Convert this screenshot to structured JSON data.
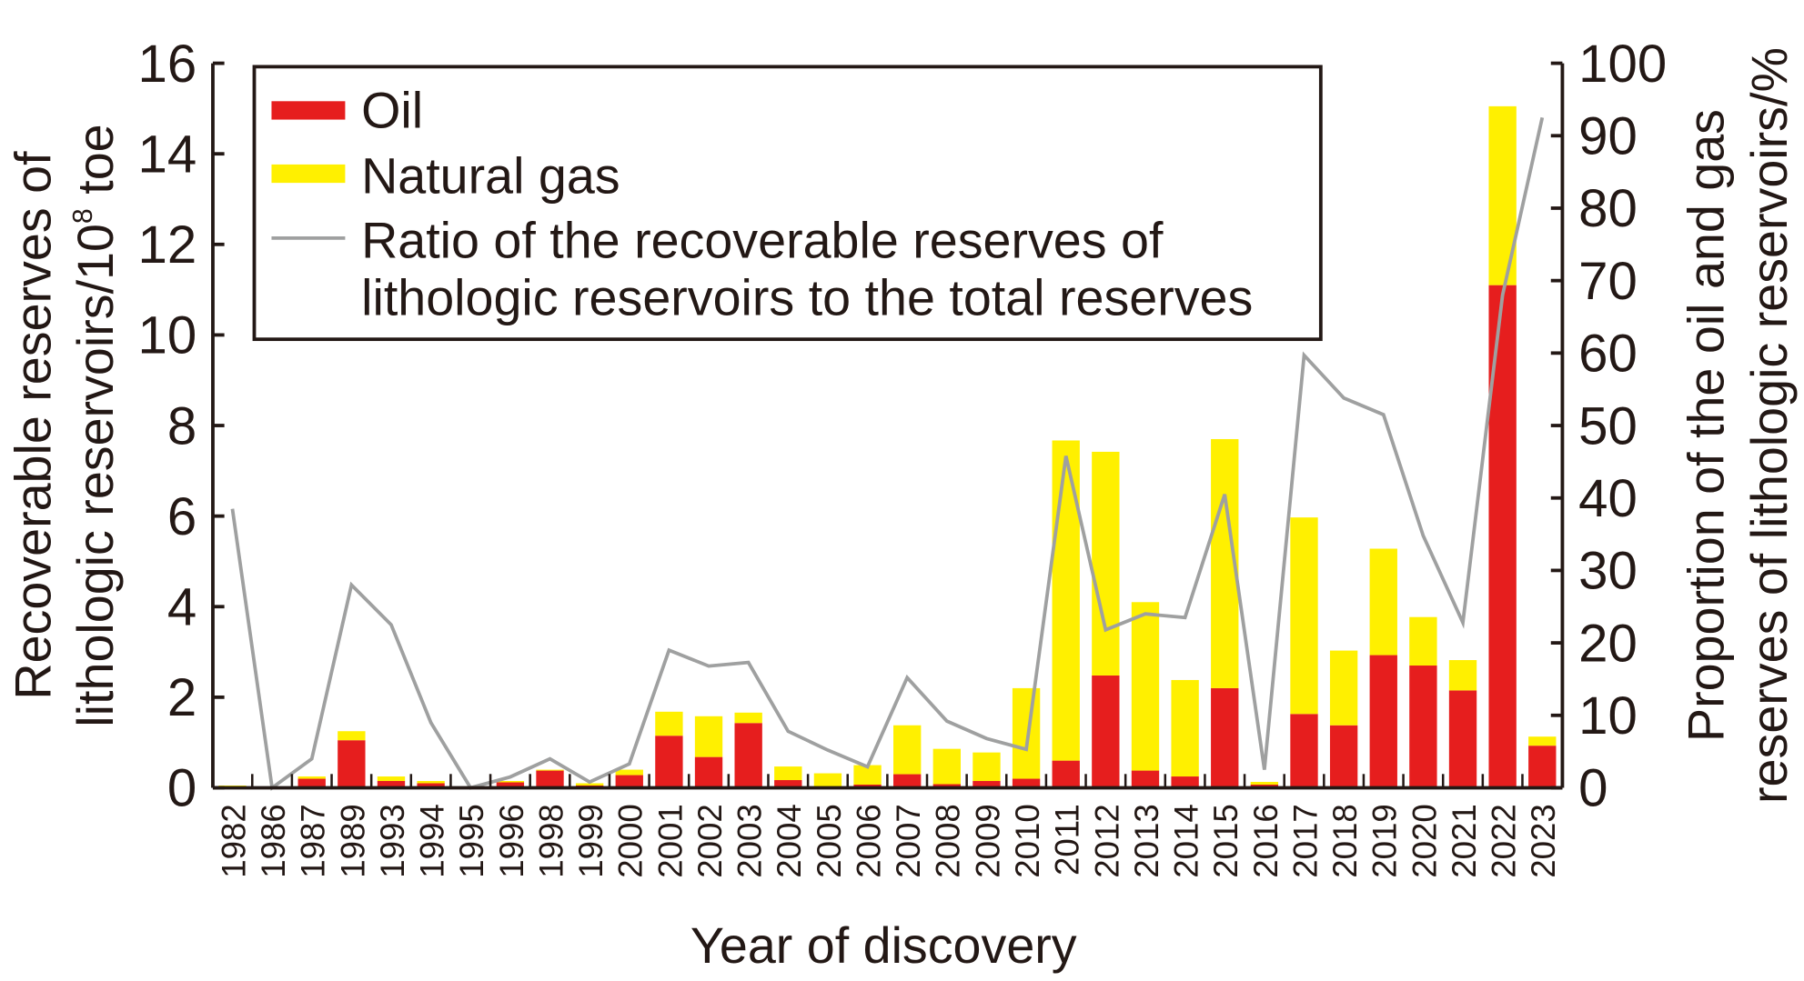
{
  "chart_data": {
    "type": "bar",
    "subtype": "stacked bar with line on secondary axis",
    "xlabel": "Year of discovery",
    "ylabel_line1": "Recoverable reserves of",
    "ylabel_line2": "lithologic reservoirs/10",
    "ylabel_sup": "8",
    "ylabel_unit": " toe",
    "y2label_line1": "Proportion of the oil and gas",
    "y2label_line2": "reserves of lithologic reservoirs/%",
    "ylim": [
      0,
      16
    ],
    "yticks": [
      "0",
      "2",
      "4",
      "6",
      "8",
      "10",
      "12",
      "14",
      "16"
    ],
    "y2lim": [
      0,
      100
    ],
    "y2ticks": [
      "0",
      "10",
      "20",
      "30",
      "40",
      "50",
      "60",
      "70",
      "80",
      "90",
      "100"
    ],
    "legend_position": "top-left",
    "categories": [
      "1982",
      "1986",
      "1987",
      "1989",
      "1993",
      "1994",
      "1995",
      "1996",
      "1998",
      "1999",
      "2000",
      "2001",
      "2002",
      "2003",
      "2004",
      "2005",
      "2006",
      "2007",
      "2008",
      "2009",
      "2010",
      "2011",
      "2012",
      "2013",
      "2014",
      "2015",
      "2016",
      "2017",
      "2018",
      "2019",
      "2020",
      "2021",
      "2022",
      "2023"
    ],
    "series": [
      {
        "name": "Oil",
        "color": "#e61e1e",
        "axis": "left",
        "type": "bar",
        "values": [
          0,
          0,
          0.2,
          1.05,
          0.15,
          0.1,
          0,
          0.12,
          0.38,
          0.05,
          0.28,
          1.15,
          0.68,
          1.43,
          0.17,
          0,
          0.07,
          0.3,
          0.08,
          0.15,
          0.2,
          0.6,
          2.48,
          0.38,
          0.25,
          2.2,
          0.07,
          1.63,
          1.38,
          2.93,
          2.7,
          2.15,
          11.1,
          0.93
        ]
      },
      {
        "name": "Natural gas",
        "color": "#fff000",
        "axis": "left",
        "type": "bar",
        "values": [
          0.05,
          0,
          0.05,
          0.2,
          0.1,
          0.05,
          0,
          0.03,
          0.02,
          0.05,
          0.12,
          0.53,
          0.9,
          0.23,
          0.3,
          0.32,
          0.43,
          1.08,
          0.78,
          0.63,
          2.0,
          7.07,
          4.94,
          3.72,
          2.13,
          5.5,
          0.06,
          4.34,
          1.65,
          2.35,
          1.07,
          0.67,
          3.95,
          0.2
        ]
      },
      {
        "name_line1": "Ratio of the recoverable reserves of",
        "name_line2": "lithologic reservoirs to the total reserves",
        "color": "#9fa0a0",
        "axis": "right",
        "type": "line",
        "values": [
          38.5,
          0,
          4,
          28,
          22.5,
          9,
          0,
          1.5,
          4,
          0.8,
          3.3,
          19,
          16.8,
          17.3,
          7.8,
          5.2,
          2.9,
          15.2,
          9.2,
          6.8,
          5.3,
          45.8,
          21.8,
          24,
          23.5,
          40.5,
          2.5,
          59.7,
          53.8,
          51.5,
          34.8,
          22.8,
          68,
          92.5
        ]
      }
    ]
  }
}
